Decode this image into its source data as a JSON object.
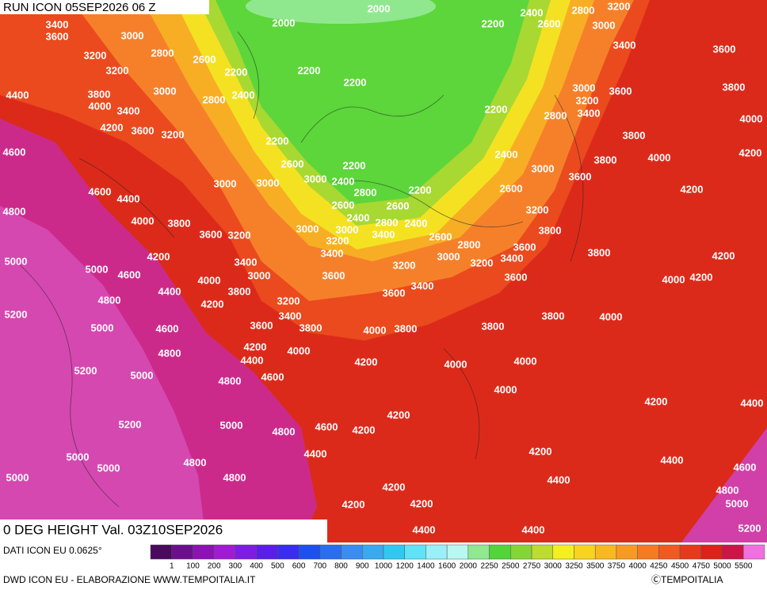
{
  "header": {
    "run": "RUN ICON 05SEP2026 06 Z"
  },
  "map": {
    "title": "0 DEG HEIGHT Val. 03Z10SEP2026",
    "contour_labels": [
      3400,
      3600,
      3000,
      3200,
      2800,
      3200,
      2600,
      2200,
      3000,
      3800,
      4000,
      3400,
      4400,
      4200,
      3600,
      3200,
      2800,
      2400,
      2000,
      2000,
      2200,
      2200,
      2200,
      2600,
      3000,
      3000,
      3000,
      2200,
      2400,
      2800,
      2200,
      2600,
      2400,
      2800,
      2400,
      2600,
      3400,
      3000,
      3000,
      3200,
      3400,
      2600,
      2800,
      3000,
      3200,
      3400,
      3600,
      3600,
      3200,
      3400,
      3600,
      3600,
      4600,
      4600,
      4400,
      4000,
      3800,
      3600,
      3200,
      4800,
      4200,
      3400,
      3000,
      4000,
      3800,
      3200,
      3400,
      3800,
      3600,
      4200,
      4400,
      4600,
      5000,
      4800,
      5000,
      5200,
      5000,
      4600,
      4800,
      4200,
      4400,
      4000,
      4000,
      3800,
      4200,
      4000,
      4000,
      3800,
      3800,
      4000,
      3800,
      3800,
      3200,
      3600,
      3000,
      3800,
      4000,
      4200,
      4200,
      4200,
      4000,
      3800,
      2400,
      2600,
      2800,
      2200,
      2200,
      2400,
      2600,
      2800,
      3200,
      3000,
      3400,
      3000,
      3200,
      3400,
      3600,
      3600,
      3800,
      4000,
      4200,
      5200,
      5000,
      4800,
      4600,
      5200,
      5000,
      4800,
      4600,
      4200,
      4200,
      5000,
      5000,
      5000,
      4800,
      4800,
      4400,
      4000,
      4200,
      4400,
      4200,
      4400,
      4400,
      4600,
      4800,
      5000,
      5200,
      4200,
      4200,
      4200,
      4400,
      4400
    ]
  },
  "legend": {
    "source": "DATI ICON EU 0.0625°",
    "colors": [
      "#4a0a5e",
      "#6c0f8c",
      "#8c12b4",
      "#a01cd4",
      "#7e1ce4",
      "#5a1ee8",
      "#3a2cf0",
      "#1e50f0",
      "#2a6ef0",
      "#3a8cf0",
      "#3aaaf0",
      "#30c8f0",
      "#60e2f8",
      "#9af0f8",
      "#b8f8f0",
      "#90e890",
      "#52d43a",
      "#84d636",
      "#bcdc30",
      "#f4f020",
      "#f8d420",
      "#f8b820",
      "#f89a22",
      "#f67a22",
      "#f05a20",
      "#e63a1c",
      "#dc221a",
      "#cc1446",
      "#f070e0"
    ],
    "labels": [
      1,
      100,
      200,
      300,
      400,
      500,
      600,
      700,
      800,
      900,
      1000,
      1200,
      1400,
      1600,
      2000,
      2250,
      2500,
      2750,
      3000,
      3250,
      3500,
      3750,
      4000,
      4250,
      4500,
      4750,
      5000,
      5500
    ]
  },
  "footer": {
    "credit": "DWD ICON EU - ELABORAZIONE WWW.TEMPOITALIA.IT",
    "copyright": "ⒸTEMPOITALIA"
  }
}
